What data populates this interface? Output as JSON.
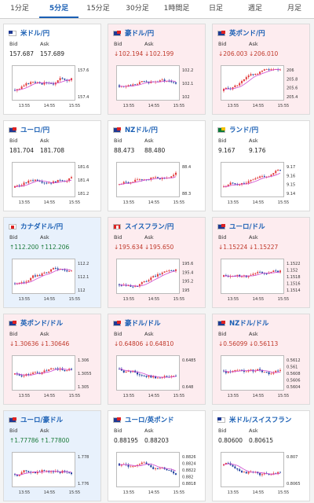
{
  "tabs": [
    {
      "label": "1分足",
      "active": false
    },
    {
      "label": "5分足",
      "active": true
    },
    {
      "label": "15分足",
      "active": false
    },
    {
      "label": "30分足",
      "active": false
    },
    {
      "label": "1時間足",
      "active": false
    },
    {
      "label": "日足",
      "active": false
    },
    {
      "label": "週足",
      "active": false
    },
    {
      "label": "月足",
      "active": false
    }
  ],
  "labels": {
    "bid": "Bid",
    "ask": "Ask"
  },
  "colors": {
    "up": "#e23b3b",
    "down": "#1e3f9e",
    "ma": "#d04ad0",
    "down_card": "#fdecef",
    "up_card": "#e8f1fc"
  },
  "rates": [
    {
      "pair": "米ドル/円",
      "flag": "us-icon",
      "flag_class": "us",
      "state": "neutral",
      "bid": "157.687",
      "ask": "157.689",
      "x_ticks": [
        "13:55",
        "14:55",
        "15:55"
      ],
      "y_ticks": [
        "157.6",
        "157.4"
      ],
      "trend": 0.8
    },
    {
      "pair": "豪ドル/円",
      "flag": "au-icon",
      "flag_class": "au",
      "state": "down",
      "bid": "↓102.194",
      "ask": "↓102.199",
      "x_ticks": [
        "13:55",
        "14:55",
        "15:55"
      ],
      "y_ticks": [
        "102.2",
        "102.1",
        "102"
      ],
      "trend": 0.3
    },
    {
      "pair": "英ポンド/円",
      "flag": "gb-icon",
      "flag_class": "gb",
      "state": "down",
      "bid": "↓206.003",
      "ask": "↓206.010",
      "x_ticks": [
        "13:55",
        "14:55",
        "15:55"
      ],
      "y_ticks": [
        "206",
        "205.8",
        "205.6",
        "205.4"
      ],
      "trend": 0.9
    },
    {
      "pair": "ユーロ/円",
      "flag": "eu-icon",
      "flag_class": "eu",
      "state": "neutral",
      "bid": "181.704",
      "ask": "181.708",
      "x_ticks": [
        "13:55",
        "14:55",
        "15:55"
      ],
      "y_ticks": [
        "181.6",
        "181.4",
        "181.2"
      ],
      "trend": 0.9
    },
    {
      "pair": "NZドル/円",
      "flag": "nz-icon",
      "flag_class": "nz",
      "state": "neutral",
      "bid": "88.473",
      "ask": "88.480",
      "x_ticks": [
        "13:55",
        "14:55",
        "15:55"
      ],
      "y_ticks": [
        "88.4",
        "88.3"
      ],
      "trend": 0.6
    },
    {
      "pair": "ランド/円",
      "flag": "za-icon",
      "flag_class": "za",
      "state": "neutral",
      "bid": "9.167",
      "ask": "9.176",
      "x_ticks": [
        "13:55",
        "14:55",
        "15:55"
      ],
      "y_ticks": [
        "9.17",
        "9.16",
        "9.15",
        "9.14"
      ],
      "trend": 0.8
    },
    {
      "pair": "カナダドル/円",
      "flag": "ca-icon",
      "flag_class": "ca",
      "state": "up",
      "bid": "↑112.200",
      "ask": "↑112.206",
      "x_ticks": [
        "13:55",
        "14:55",
        "15:55"
      ],
      "y_ticks": [
        "112.2",
        "112.1",
        "112"
      ],
      "trend": 0.8
    },
    {
      "pair": "スイスフラン/円",
      "flag": "ch-icon",
      "flag_class": "ch",
      "state": "down",
      "bid": "↓195.634",
      "ask": "↓195.650",
      "x_ticks": [
        "13:55",
        "14:55",
        "15:55"
      ],
      "y_ticks": [
        "195.6",
        "195.4",
        "195.2",
        "195"
      ],
      "trend": 0.9
    },
    {
      "pair": "ユーロ/ドル",
      "flag": "eu-icon",
      "flag_class": "eu",
      "state": "down",
      "bid": "↓1.15224",
      "ask": "↓1.15227",
      "x_ticks": [
        "13:55",
        "14:55",
        "15:55"
      ],
      "y_ticks": [
        "1.1522",
        "1.152",
        "1.1518",
        "1.1516",
        "1.1514"
      ],
      "trend": 0.1
    },
    {
      "pair": "英ポンド/ドル",
      "flag": "gb-icon",
      "flag_class": "gb",
      "state": "down",
      "bid": "↓1.30636",
      "ask": "↓1.30646",
      "x_ticks": [
        "13:55",
        "14:55",
        "15:55"
      ],
      "y_ticks": [
        "1.306",
        "1.3055",
        "1.305"
      ],
      "trend": 0.2
    },
    {
      "pair": "豪ドル/ドル",
      "flag": "au-icon",
      "flag_class": "au",
      "state": "down",
      "bid": "↓0.64806",
      "ask": "↓0.64810",
      "x_ticks": [
        "13:55",
        "14:55",
        "15:55"
      ],
      "y_ticks": [
        "0.6485",
        "0.648"
      ],
      "trend": -0.4
    },
    {
      "pair": "NZドル/ドル",
      "flag": "nz-icon",
      "flag_class": "nz",
      "state": "down",
      "bid": "↓0.56099",
      "ask": "↓0.56113",
      "x_ticks": [
        "13:55",
        "14:55",
        "15:55"
      ],
      "y_ticks": [
        "0.5612",
        "0.561",
        "0.5608",
        "0.5606",
        "0.5604"
      ],
      "trend": -0.2
    },
    {
      "pair": "ユーロ/豪ドル",
      "flag": "eu-icon",
      "flag_class": "eu",
      "state": "up",
      "bid": "↑1.77786",
      "ask": "↑1.77800",
      "x_ticks": [
        "13:55",
        "14:55",
        "15:55"
      ],
      "y_ticks": [
        "1.778",
        "1.776"
      ],
      "trend": 0.5
    },
    {
      "pair": "ユーロ/英ポンド",
      "flag": "eu-icon",
      "flag_class": "eu",
      "state": "neutral",
      "bid": "0.88195",
      "ask": "0.88203",
      "x_ticks": [
        "13:55",
        "14:55",
        "15:55"
      ],
      "y_ticks": [
        "0.8826",
        "0.8824",
        "0.8822",
        "0.882",
        "0.8818"
      ],
      "trend": -0.6
    },
    {
      "pair": "米ドル/スイスフラン",
      "flag": "us-icon",
      "flag_class": "us",
      "state": "neutral",
      "bid": "0.80600",
      "ask": "0.80615",
      "x_ticks": [
        "13:55",
        "14:55",
        "15:55"
      ],
      "y_ticks": [
        "0.807",
        "0.8065"
      ],
      "trend": -0.4
    }
  ]
}
